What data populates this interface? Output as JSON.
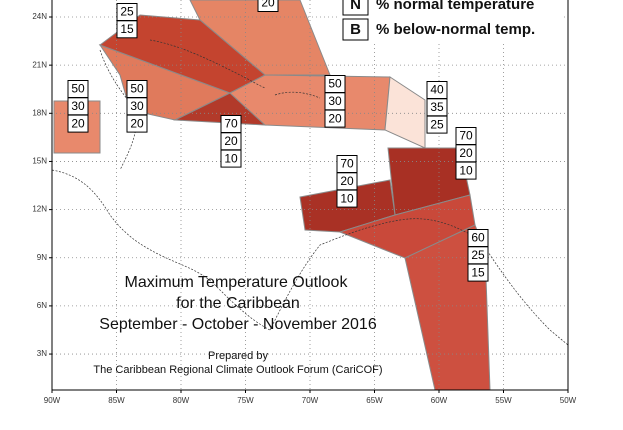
{
  "legend": [
    {
      "key": "N",
      "label": "% normal temperature"
    },
    {
      "key": "B",
      "label": "% below-normal temp."
    }
  ],
  "lat_labels": [
    "24N",
    "21N",
    "18N",
    "15N",
    "12N",
    "9N",
    "6N",
    "3N"
  ],
  "lon_labels": [
    "90W",
    "85W",
    "80W",
    "75W",
    "70W",
    "65W",
    "60W",
    "55W",
    "50W"
  ],
  "title": {
    "line1": "Maximum Temperature Outlook",
    "line2": "for the Caribbean",
    "line3": "September - October - November 2016"
  },
  "credit": {
    "line1": "Prepared by",
    "line2": "The Caribbean Regional Climate Outlook Forum (CariCOF)"
  },
  "probability_boxes": [
    {
      "values": [
        25,
        15
      ]
    },
    {
      "values": [
        20
      ]
    },
    {
      "values": [
        50,
        30,
        20
      ]
    },
    {
      "values": [
        50,
        30,
        20
      ]
    },
    {
      "values": [
        70,
        20,
        10
      ]
    },
    {
      "values": [
        50,
        30,
        20
      ]
    },
    {
      "values": [
        40,
        35,
        25
      ]
    },
    {
      "values": [
        70,
        20,
        10
      ]
    },
    {
      "values": [
        70,
        20,
        10
      ]
    },
    {
      "values": [
        60,
        25,
        15
      ]
    }
  ]
}
